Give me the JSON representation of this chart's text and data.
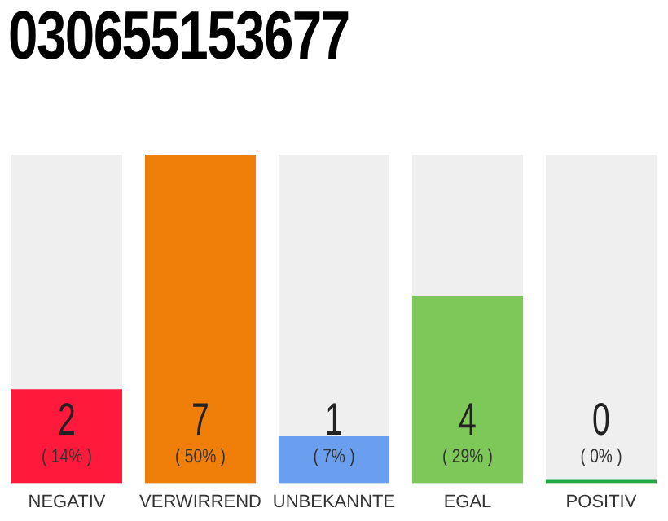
{
  "chart_data": {
    "type": "bar",
    "title": "030655153677",
    "categories": [
      "NEGATIV",
      "VERWIRREND",
      "UNBEKANNTE",
      "EGAL",
      "POSITIV"
    ],
    "values": [
      2,
      7,
      1,
      4,
      0
    ],
    "colors": [
      "#ff1a3c",
      "#f07f0a",
      "#6a9ff0",
      "#7ec85a",
      "#22a845"
    ],
    "ylim": [
      0,
      7
    ],
    "value_labels": [
      "2\n( 14% )",
      "7\n( 50% )",
      "1\n( 7% )",
      "4\n( 29% )",
      "0\n( 0% )"
    ],
    "grid": false,
    "legend": false,
    "tick_labels": "x"
  }
}
